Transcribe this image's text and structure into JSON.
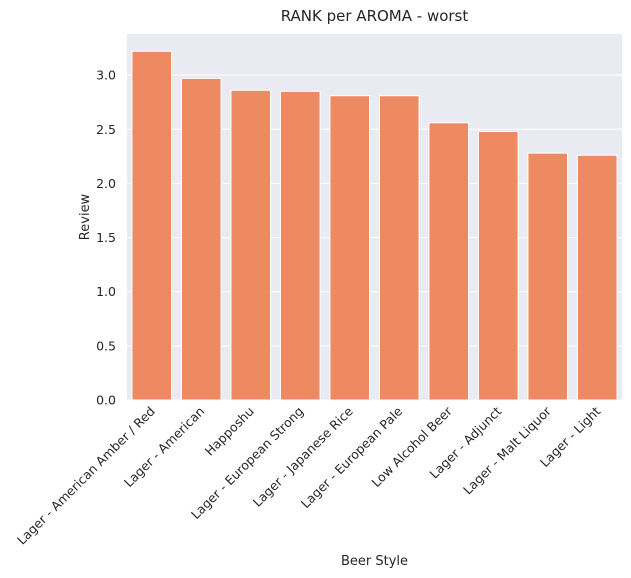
{
  "chart_data": {
    "type": "bar",
    "title": "RANK per AROMA - worst",
    "xlabel": "Beer Style",
    "ylabel": "Review",
    "categories": [
      "Lager - American Amber / Red",
      "Lager - American",
      "Happoshu",
      "Lager - European Strong",
      "Lager - Japanese Rice",
      "Lager - European Pale",
      "Low Alcohol Beer",
      "Lager - Adjunct",
      "Lager - Malt Liquor",
      "Lager - Light"
    ],
    "values": [
      3.22,
      2.97,
      2.86,
      2.85,
      2.81,
      2.81,
      2.56,
      2.48,
      2.28,
      2.26
    ],
    "ylim": [
      0,
      3.38
    ],
    "yticks": [
      "0.0",
      "0.5",
      "1.0",
      "1.5",
      "2.0",
      "2.5",
      "3.0"
    ],
    "grid": true,
    "colors": {
      "bar": "#ee8a62",
      "background": "#eaeaf2",
      "grid": "#ffffff"
    }
  }
}
